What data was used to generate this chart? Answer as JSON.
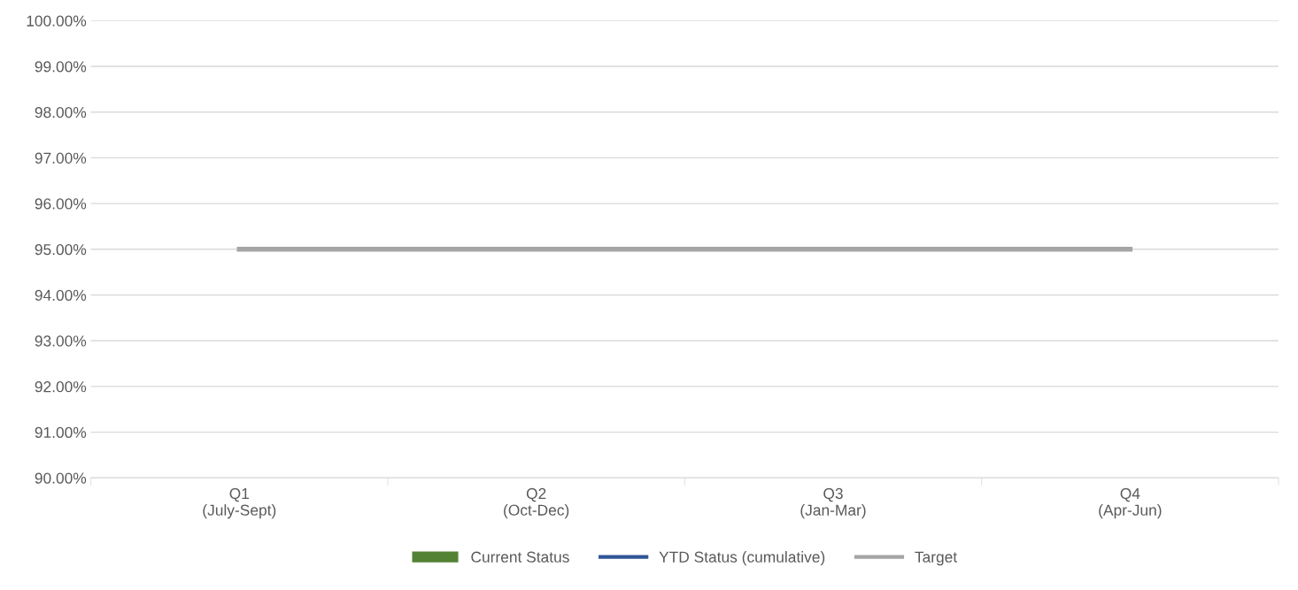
{
  "chart_data": {
    "type": "bar",
    "categories": [
      "Q1\n(July-Sept)",
      "Q2\n(Oct-Dec)",
      "Q3\n(Jan-Mar)",
      "Q4\n(Apr-Jun)"
    ],
    "series": [
      {
        "name": "Current Status",
        "color": "#548235",
        "values": [
          null,
          null,
          null,
          null
        ]
      },
      {
        "name": "YTD Status (cumulative)",
        "type": "line",
        "color": "#2f5597",
        "values": [
          null,
          null,
          null,
          null
        ]
      },
      {
        "name": "Target",
        "type": "line",
        "color": "#a5a5a5",
        "values": [
          95,
          95,
          95,
          95
        ]
      }
    ],
    "ylim": [
      90,
      100
    ],
    "yticks": [
      {
        "value": 90,
        "label": "90.00%"
      },
      {
        "value": 91,
        "label": "91.00%"
      },
      {
        "value": 92,
        "label": "92.00%"
      },
      {
        "value": 93,
        "label": "93.00%"
      },
      {
        "value": 94,
        "label": "94.00%"
      },
      {
        "value": 95,
        "label": "95.00%"
      },
      {
        "value": 96,
        "label": "96.00%"
      },
      {
        "value": 97,
        "label": "97.00%"
      },
      {
        "value": 98,
        "label": "98.00%"
      },
      {
        "value": 99,
        "label": "99.00%"
      },
      {
        "value": 100,
        "label": "100.00%"
      }
    ],
    "grid": "y",
    "legend": "bottom",
    "marker": "none"
  }
}
